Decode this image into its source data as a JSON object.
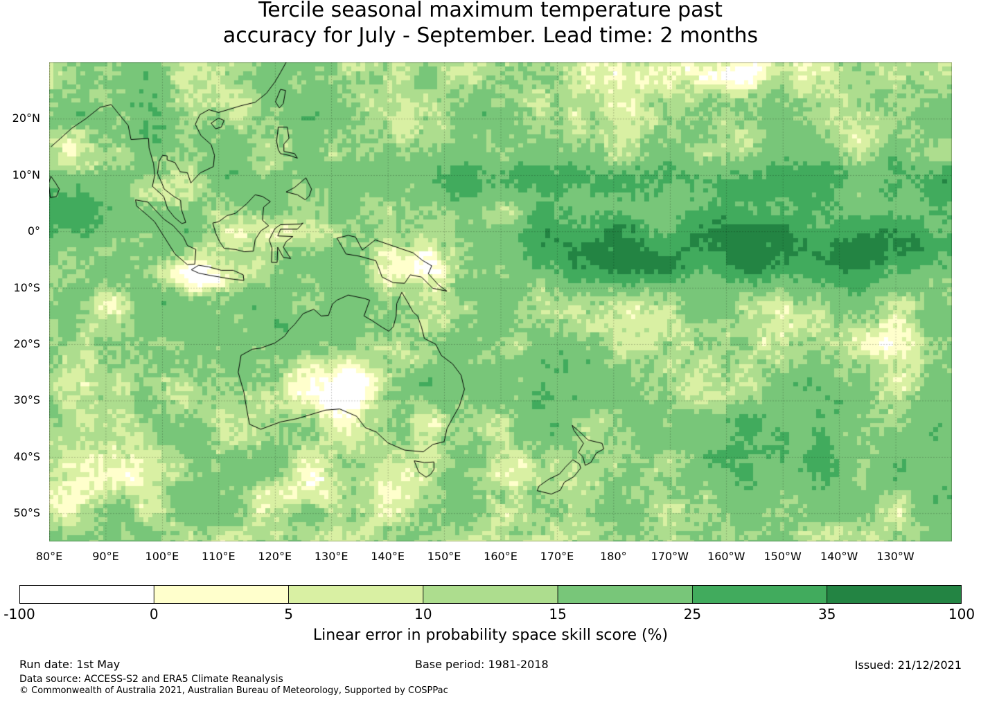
{
  "title_line1": "Tercile seasonal maximum temperature past",
  "title_line2": "accuracy for July - September. Lead time: 2 months",
  "map": {
    "lon_range": [
      80,
      240
    ],
    "lat_range": [
      -55,
      30
    ],
    "lat_ticks": [
      {
        "value": 20,
        "label": "20°N"
      },
      {
        "value": 10,
        "label": "10°N"
      },
      {
        "value": 0,
        "label": "0°"
      },
      {
        "value": -10,
        "label": "10°S"
      },
      {
        "value": -20,
        "label": "20°S"
      },
      {
        "value": -30,
        "label": "30°S"
      },
      {
        "value": -40,
        "label": "40°S"
      },
      {
        "value": -50,
        "label": "50°S"
      }
    ],
    "lon_ticks": [
      {
        "value": 80,
        "label": "80°E"
      },
      {
        "value": 90,
        "label": "90°E"
      },
      {
        "value": 100,
        "label": "100°E"
      },
      {
        "value": 110,
        "label": "110°E"
      },
      {
        "value": 120,
        "label": "120°E"
      },
      {
        "value": 130,
        "label": "130°E"
      },
      {
        "value": 140,
        "label": "140°E"
      },
      {
        "value": 150,
        "label": "150°E"
      },
      {
        "value": 160,
        "label": "160°E"
      },
      {
        "value": 170,
        "label": "170°E"
      },
      {
        "value": 180,
        "label": "180°"
      },
      {
        "value": 190,
        "label": "170°W"
      },
      {
        "value": 200,
        "label": "160°W"
      },
      {
        "value": 210,
        "label": "150°W"
      },
      {
        "value": 220,
        "label": "140°W"
      },
      {
        "value": 230,
        "label": "130°W"
      }
    ]
  },
  "colorbar": {
    "boundaries": [
      "-100",
      "0",
      "5",
      "10",
      "15",
      "25",
      "35",
      "100"
    ],
    "colors": [
      "#ffffff",
      "#ffffcc",
      "#d9f0a3",
      "#addd8e",
      "#78c679",
      "#41ab5d",
      "#238443"
    ],
    "label": "Linear error in probability space skill score (%)"
  },
  "footer": {
    "run_date": "Run date: 1st May",
    "base_period": "Base period: 1981-2018",
    "issued": "Issued: 21/12/2021",
    "data_source": "Data source: ACCESS-S2 and ERA5 Climate Reanalysis",
    "copyright": "© Commonwealth of Australia 2021, Australian Bureau of Meteorology, Supported by COSPPac"
  }
}
